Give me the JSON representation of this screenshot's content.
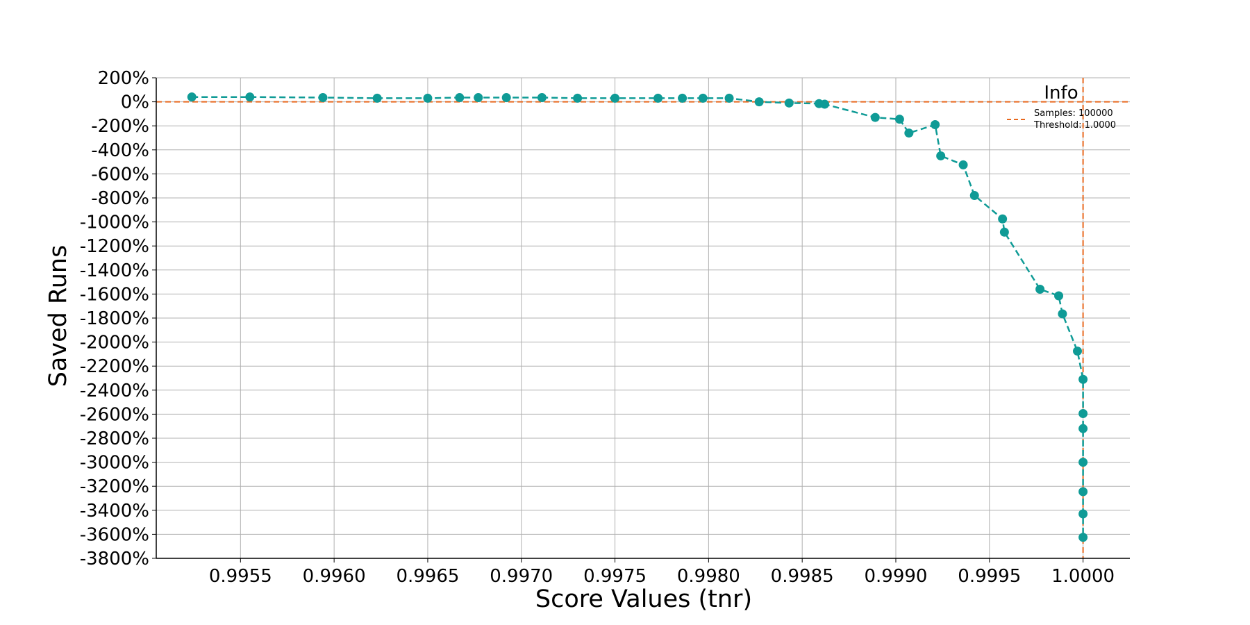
{
  "chart_data": {
    "type": "line",
    "title": "",
    "xlabel": "Score Values (tnr)",
    "ylabel": "Saved Runs",
    "xlim": [
      0.99505,
      1.00025
    ],
    "ylim": [
      -3800,
      200
    ],
    "x_ticks": [
      0.9955,
      0.996,
      0.9965,
      0.997,
      0.9975,
      0.998,
      0.9985,
      0.999,
      0.9995,
      1.0
    ],
    "x_tick_labels": [
      "0.9955",
      "0.9960",
      "0.9965",
      "0.9970",
      "0.9975",
      "0.9980",
      "0.9985",
      "0.9990",
      "0.9995",
      "1.0000"
    ],
    "y_ticks": [
      200,
      0,
      -200,
      -400,
      -600,
      -800,
      -1000,
      -1200,
      -1400,
      -1600,
      -1800,
      -2000,
      -2200,
      -2400,
      -2600,
      -2800,
      -3000,
      -3200,
      -3400,
      -3600,
      -3800
    ],
    "y_tick_labels": [
      "200%",
      "0%",
      "-200%",
      "-400%",
      "-600%",
      "-800%",
      "-1000%",
      "-1200%",
      "-1400%",
      "-1600%",
      "-1800%",
      "-2000%",
      "-2200%",
      "-2400%",
      "-2600%",
      "-2800%",
      "-3000%",
      "-3200%",
      "-3400%",
      "-3600%",
      "-3800%"
    ],
    "grid": true,
    "series": [
      {
        "color": "#0f9b96",
        "style": "dashed-line-with-markers",
        "x": [
          0.99524,
          0.99555,
          0.99594,
          0.99623,
          0.9965,
          0.99667,
          0.99677,
          0.99692,
          0.99711,
          0.9973,
          0.9975,
          0.99773,
          0.99786,
          0.99797,
          0.99811,
          0.99827,
          0.99843,
          0.99859,
          0.99862,
          0.99889,
          0.99902,
          0.99907,
          0.99921,
          0.99924,
          0.99936,
          0.99942,
          0.99957,
          0.99958,
          0.99977,
          0.99987,
          0.99989,
          0.99997,
          1.0,
          1.0,
          1.0,
          1.0,
          1.0,
          1.0,
          1.0
        ],
        "y": [
          40,
          40,
          35,
          30,
          30,
          35,
          35,
          35,
          35,
          30,
          30,
          30,
          30,
          30,
          30,
          0,
          -10,
          -15,
          -20,
          -130,
          -145,
          -260,
          -190,
          -450,
          -525,
          -780,
          -975,
          -1085,
          -1560,
          -1615,
          -1765,
          -2075,
          -2310,
          -2595,
          -2720,
          -3000,
          -3245,
          -3430,
          -3625
        ]
      }
    ],
    "reference_lines": [
      {
        "orientation": "horizontal",
        "value": 0,
        "color": "#e8681e",
        "style": "dashed"
      },
      {
        "orientation": "vertical",
        "value": 1.0,
        "color": "#e8681e",
        "style": "dashed"
      }
    ],
    "legend": {
      "title": "Info",
      "placement": "top-right",
      "lines": [
        "Samples: 100000",
        "Threshold: 1.0000"
      ],
      "line_color": "#e8681e"
    }
  }
}
